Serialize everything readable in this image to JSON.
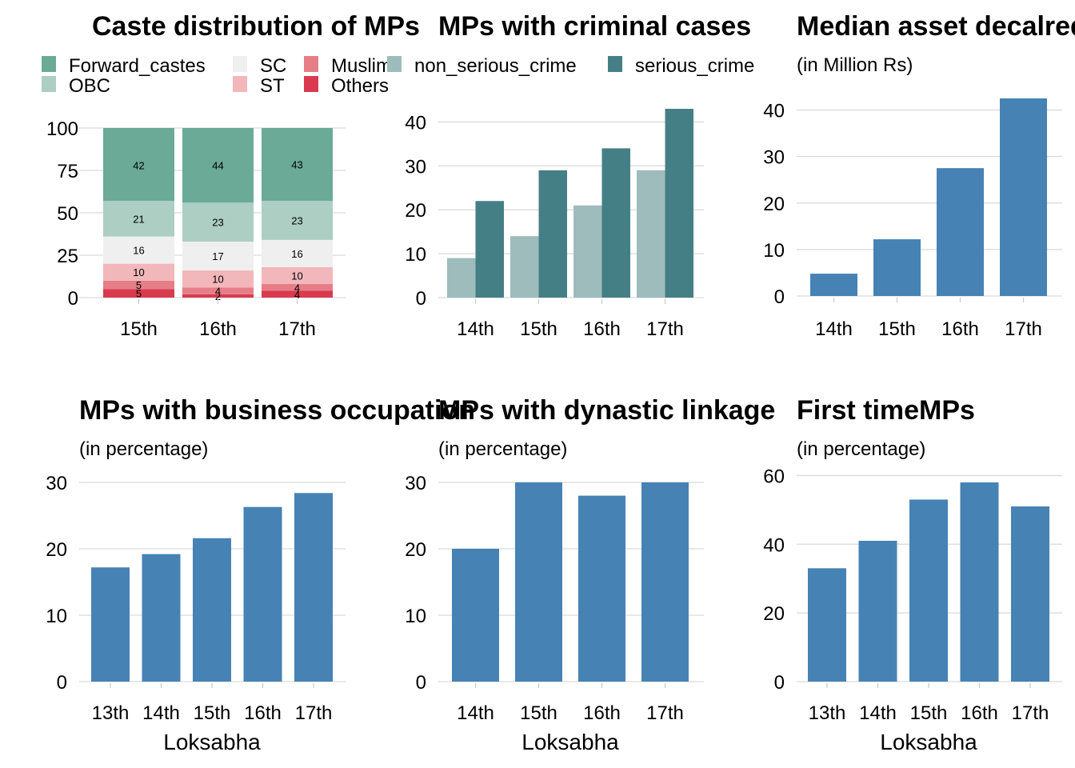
{
  "chart_data": [
    {
      "id": "caste",
      "type": "bar",
      "stacked": true,
      "title": "Caste distribution of MPs",
      "subtitle": "",
      "xlabel": "",
      "categories": [
        "15th",
        "16th",
        "17th"
      ],
      "ylim": [
        0,
        100
      ],
      "yticks": [
        0,
        25,
        50,
        75,
        100
      ],
      "legend_position": "top",
      "series": [
        {
          "name": "Others",
          "color": "#d93a50",
          "values": [
            5,
            2,
            4
          ]
        },
        {
          "name": "Muslims",
          "color": "#e57e86",
          "values": [
            5,
            4,
            4
          ]
        },
        {
          "name": "ST",
          "color": "#f2b7ba",
          "values": [
            10,
            10,
            10
          ]
        },
        {
          "name": "SC",
          "color": "#efefef",
          "values": [
            16,
            17,
            16
          ]
        },
        {
          "name": "OBC",
          "color": "#adcec2",
          "values": [
            21,
            23,
            23
          ]
        },
        {
          "name": "Forward_castes",
          "color": "#6aaa96",
          "values": [
            42,
            44,
            43
          ]
        }
      ],
      "legend_order": [
        "Forward_castes",
        "OBC",
        "SC",
        "ST",
        "Muslims",
        "Others"
      ]
    },
    {
      "id": "criminal",
      "type": "bar",
      "grouped": true,
      "title": "MPs with criminal cases",
      "subtitle": "",
      "xlabel": "",
      "categories": [
        "14th",
        "15th",
        "16th",
        "17th"
      ],
      "ylim": [
        0,
        43
      ],
      "yticks": [
        0,
        10,
        20,
        30,
        40
      ],
      "legend_position": "top",
      "series": [
        {
          "name": "non_serious_crime",
          "color": "#9ebcbb",
          "values": [
            9,
            14,
            21,
            29
          ]
        },
        {
          "name": "serious_crime",
          "color": "#447f86",
          "values": [
            22,
            29,
            34,
            43
          ]
        }
      ]
    },
    {
      "id": "assets",
      "type": "bar",
      "title": "Median asset decalred",
      "subtitle": "(in Million Rs)",
      "xlabel": "",
      "categories": [
        "14th",
        "15th",
        "16th",
        "17th"
      ],
      "values": [
        4.8,
        12.2,
        27.5,
        42.5
      ],
      "ylim": [
        0,
        42.5
      ],
      "yticks": [
        0,
        10,
        20,
        30,
        40
      ],
      "color": "#4682b4"
    },
    {
      "id": "business",
      "type": "bar",
      "title": "MPs with business occupation",
      "subtitle": "(in percentage)",
      "xlabel": "Loksabha",
      "categories": [
        "13th",
        "14th",
        "15th",
        "16th",
        "17th"
      ],
      "values": [
        17.2,
        19.2,
        21.6,
        26.3,
        28.4
      ],
      "ylim": [
        0,
        30
      ],
      "yticks": [
        0,
        10,
        20,
        30
      ],
      "color": "#4682b4"
    },
    {
      "id": "dynastic",
      "type": "bar",
      "title": "MPs with dynastic linkage",
      "subtitle": "(in percentage)",
      "xlabel": "Loksabha",
      "categories": [
        "14th",
        "15th",
        "16th",
        "17th"
      ],
      "values": [
        20,
        30,
        28,
        30
      ],
      "ylim": [
        0,
        30
      ],
      "yticks": [
        0,
        10,
        20,
        30
      ],
      "color": "#4682b4"
    },
    {
      "id": "firsttime",
      "type": "bar",
      "title": "First timeMPs",
      "subtitle": "(in percentage)",
      "xlabel": "Loksabha",
      "categories": [
        "13th",
        "14th",
        "15th",
        "16th",
        "17th"
      ],
      "values": [
        33,
        41,
        53,
        58,
        51
      ],
      "ylim": [
        0,
        58
      ],
      "yticks": [
        0,
        20,
        40,
        60
      ],
      "color": "#4682b4"
    }
  ]
}
